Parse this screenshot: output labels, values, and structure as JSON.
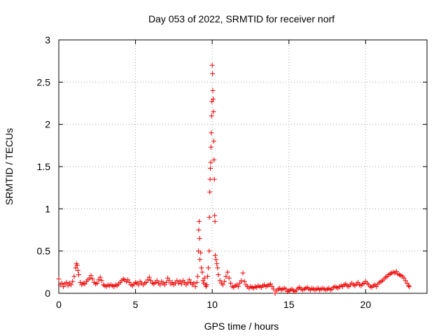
{
  "chart_data": {
    "type": "scatter",
    "title": "Day 053 of 2022, SRMTID for receiver norf",
    "xlabel": "GPS time / hours",
    "ylabel": "SRMTID / TECUs",
    "xlim": [
      0,
      24
    ],
    "ylim": [
      0,
      3
    ],
    "xticks": [
      0,
      5,
      10,
      15,
      20
    ],
    "yticks": [
      0,
      0.5,
      1,
      1.5,
      2,
      2.5,
      3
    ],
    "xtick_labels": [
      "0",
      "5",
      "10",
      "15",
      "20"
    ],
    "ytick_labels": [
      "0",
      "0.5",
      "1",
      "1.5",
      "2",
      "2.5",
      "3"
    ],
    "grid": true,
    "marker": "+",
    "series": [
      {
        "name": "SRMTID",
        "color": "#ee0000",
        "points": [
          [
            0.0,
            0.17
          ],
          [
            0.1,
            0.1
          ],
          [
            0.2,
            0.12
          ],
          [
            0.3,
            0.08
          ],
          [
            0.4,
            0.11
          ],
          [
            0.5,
            0.13
          ],
          [
            0.6,
            0.09
          ],
          [
            0.7,
            0.12
          ],
          [
            0.8,
            0.1
          ],
          [
            0.9,
            0.14
          ],
          [
            1.0,
            0.2
          ],
          [
            1.1,
            0.3
          ],
          [
            1.15,
            0.35
          ],
          [
            1.2,
            0.33
          ],
          [
            1.25,
            0.27
          ],
          [
            1.3,
            0.22
          ],
          [
            1.4,
            0.13
          ],
          [
            1.5,
            0.1
          ],
          [
            1.6,
            0.12
          ],
          [
            1.7,
            0.11
          ],
          [
            1.8,
            0.14
          ],
          [
            1.9,
            0.16
          ],
          [
            2.0,
            0.18
          ],
          [
            2.1,
            0.21
          ],
          [
            2.2,
            0.17
          ],
          [
            2.3,
            0.13
          ],
          [
            2.4,
            0.11
          ],
          [
            2.5,
            0.12
          ],
          [
            2.6,
            0.16
          ],
          [
            2.7,
            0.19
          ],
          [
            2.8,
            0.15
          ],
          [
            2.9,
            0.1
          ],
          [
            3.0,
            0.09
          ],
          [
            3.1,
            0.08
          ],
          [
            3.2,
            0.1
          ],
          [
            3.3,
            0.09
          ],
          [
            3.4,
            0.1
          ],
          [
            3.5,
            0.09
          ],
          [
            3.6,
            0.08
          ],
          [
            3.7,
            0.1
          ],
          [
            3.8,
            0.09
          ],
          [
            3.9,
            0.11
          ],
          [
            4.0,
            0.13
          ],
          [
            4.1,
            0.15
          ],
          [
            4.2,
            0.17
          ],
          [
            4.3,
            0.16
          ],
          [
            4.4,
            0.14
          ],
          [
            4.5,
            0.16
          ],
          [
            4.6,
            0.13
          ],
          [
            4.7,
            0.1
          ],
          [
            4.8,
            0.09
          ],
          [
            4.9,
            0.11
          ],
          [
            5.0,
            0.13
          ],
          [
            5.1,
            0.12
          ],
          [
            5.2,
            0.1
          ],
          [
            5.3,
            0.14
          ],
          [
            5.4,
            0.12
          ],
          [
            5.5,
            0.1
          ],
          [
            5.6,
            0.12
          ],
          [
            5.7,
            0.13
          ],
          [
            5.8,
            0.16
          ],
          [
            5.9,
            0.19
          ],
          [
            6.0,
            0.15
          ],
          [
            6.1,
            0.12
          ],
          [
            6.2,
            0.11
          ],
          [
            6.3,
            0.13
          ],
          [
            6.4,
            0.15
          ],
          [
            6.5,
            0.12
          ],
          [
            6.6,
            0.1
          ],
          [
            6.7,
            0.14
          ],
          [
            6.8,
            0.12
          ],
          [
            6.9,
            0.1
          ],
          [
            7.0,
            0.13
          ],
          [
            7.1,
            0.18
          ],
          [
            7.2,
            0.15
          ],
          [
            7.3,
            0.11
          ],
          [
            7.4,
            0.13
          ],
          [
            7.5,
            0.1
          ],
          [
            7.6,
            0.12
          ],
          [
            7.7,
            0.15
          ],
          [
            7.8,
            0.12
          ],
          [
            7.9,
            0.14
          ],
          [
            8.0,
            0.11
          ],
          [
            8.1,
            0.15
          ],
          [
            8.2,
            0.13
          ],
          [
            8.3,
            0.1
          ],
          [
            8.4,
            0.12
          ],
          [
            8.5,
            0.16
          ],
          [
            8.6,
            0.13
          ],
          [
            8.7,
            0.1
          ],
          [
            8.8,
            0.12
          ],
          [
            8.9,
            0.08
          ],
          [
            9.0,
            0.13
          ],
          [
            9.05,
            0.2
          ],
          [
            9.1,
            0.5
          ],
          [
            9.12,
            0.75
          ],
          [
            9.15,
            0.85
          ],
          [
            9.18,
            0.65
          ],
          [
            9.2,
            0.4
          ],
          [
            9.25,
            0.48
          ],
          [
            9.3,
            0.3
          ],
          [
            9.35,
            0.25
          ],
          [
            9.4,
            0.15
          ],
          [
            9.45,
            0.12
          ],
          [
            9.5,
            0.18
          ],
          [
            9.55,
            0.1
          ],
          [
            9.6,
            0.08
          ],
          [
            9.65,
            0.1
          ],
          [
            9.7,
            0.2
          ],
          [
            9.75,
            0.3
          ],
          [
            9.8,
            0.5
          ],
          [
            9.82,
            0.9
          ],
          [
            9.84,
            1.2
          ],
          [
            9.86,
            1.35
          ],
          [
            9.88,
            1.48
          ],
          [
            9.9,
            1.55
          ],
          [
            9.92,
            1.73
          ],
          [
            9.94,
            1.9
          ],
          [
            9.96,
            2.1
          ],
          [
            9.98,
            2.27
          ],
          [
            10.0,
            2.7
          ],
          [
            10.02,
            2.6
          ],
          [
            10.04,
            2.4
          ],
          [
            10.06,
            2.3
          ],
          [
            10.08,
            2.15
          ],
          [
            10.1,
            1.8
          ],
          [
            10.12,
            1.58
          ],
          [
            10.14,
            1.35
          ],
          [
            10.16,
            0.92
          ],
          [
            10.18,
            0.85
          ],
          [
            10.2,
            0.45
          ],
          [
            10.25,
            0.4
          ],
          [
            10.3,
            0.35
          ],
          [
            10.35,
            0.3
          ],
          [
            10.4,
            0.22
          ],
          [
            10.5,
            0.15
          ],
          [
            10.6,
            0.12
          ],
          [
            10.7,
            0.1
          ],
          [
            10.8,
            0.14
          ],
          [
            10.9,
            0.2
          ],
          [
            11.0,
            0.25
          ],
          [
            11.1,
            0.18
          ],
          [
            11.2,
            0.12
          ],
          [
            11.3,
            0.08
          ],
          [
            11.4,
            0.07
          ],
          [
            11.5,
            0.09
          ],
          [
            11.6,
            0.1
          ],
          [
            11.7,
            0.08
          ],
          [
            11.8,
            0.12
          ],
          [
            11.9,
            0.15
          ],
          [
            12.0,
            0.24
          ],
          [
            12.1,
            0.14
          ],
          [
            12.2,
            0.1
          ],
          [
            12.3,
            0.08
          ],
          [
            12.4,
            0.06
          ],
          [
            12.5,
            0.08
          ],
          [
            12.6,
            0.07
          ],
          [
            12.7,
            0.06
          ],
          [
            12.8,
            0.08
          ],
          [
            12.9,
            0.07
          ],
          [
            13.0,
            0.09
          ],
          [
            13.1,
            0.08
          ],
          [
            13.2,
            0.07
          ],
          [
            13.3,
            0.09
          ],
          [
            13.4,
            0.1
          ],
          [
            13.5,
            0.08
          ],
          [
            13.6,
            0.09
          ],
          [
            13.7,
            0.1
          ],
          [
            13.8,
            0.11
          ],
          [
            13.9,
            0.08
          ],
          [
            14.0,
            0.05
          ],
          [
            14.1,
            0.0
          ],
          [
            14.2,
            0.03
          ],
          [
            14.3,
            0.05
          ],
          [
            14.4,
            0.06
          ],
          [
            14.5,
            0.04
          ],
          [
            14.6,
            0.05
          ],
          [
            14.7,
            0.06
          ],
          [
            14.8,
            0.05
          ],
          [
            14.9,
            0.02
          ],
          [
            15.0,
            0.03
          ],
          [
            15.1,
            0.04
          ],
          [
            15.2,
            0.05
          ],
          [
            15.3,
            0.03
          ],
          [
            15.4,
            0.02
          ],
          [
            15.5,
            0.04
          ],
          [
            15.6,
            0.06
          ],
          [
            15.7,
            0.07
          ],
          [
            15.8,
            0.05
          ],
          [
            15.9,
            0.04
          ],
          [
            16.0,
            0.05
          ],
          [
            16.1,
            0.06
          ],
          [
            16.2,
            0.07
          ],
          [
            16.3,
            0.05
          ],
          [
            16.4,
            0.04
          ],
          [
            16.5,
            0.06
          ],
          [
            16.6,
            0.05
          ],
          [
            16.7,
            0.04
          ],
          [
            16.8,
            0.05
          ],
          [
            16.9,
            0.06
          ],
          [
            17.0,
            0.04
          ],
          [
            17.1,
            0.05
          ],
          [
            17.2,
            0.06
          ],
          [
            17.3,
            0.05
          ],
          [
            17.4,
            0.04
          ],
          [
            17.5,
            0.05
          ],
          [
            17.6,
            0.06
          ],
          [
            17.7,
            0.04
          ],
          [
            17.8,
            0.05
          ],
          [
            17.9,
            0.07
          ],
          [
            18.0,
            0.08
          ],
          [
            18.1,
            0.07
          ],
          [
            18.2,
            0.06
          ],
          [
            18.3,
            0.08
          ],
          [
            18.4,
            0.09
          ],
          [
            18.5,
            0.08
          ],
          [
            18.6,
            0.1
          ],
          [
            18.7,
            0.11
          ],
          [
            18.8,
            0.09
          ],
          [
            18.9,
            0.08
          ],
          [
            19.0,
            0.1
          ],
          [
            19.1,
            0.12
          ],
          [
            19.2,
            0.1
          ],
          [
            19.3,
            0.09
          ],
          [
            19.4,
            0.11
          ],
          [
            19.5,
            0.13
          ],
          [
            19.6,
            0.1
          ],
          [
            19.7,
            0.09
          ],
          [
            19.8,
            0.11
          ],
          [
            19.9,
            0.12
          ],
          [
            20.0,
            0.14
          ],
          [
            20.1,
            0.12
          ],
          [
            20.2,
            0.1
          ],
          [
            20.3,
            0.08
          ],
          [
            20.4,
            0.07
          ],
          [
            20.5,
            0.09
          ],
          [
            20.6,
            0.1
          ],
          [
            20.7,
            0.08
          ],
          [
            20.8,
            0.11
          ],
          [
            20.9,
            0.13
          ],
          [
            21.0,
            0.14
          ],
          [
            21.1,
            0.15
          ],
          [
            21.2,
            0.17
          ],
          [
            21.3,
            0.19
          ],
          [
            21.4,
            0.2
          ],
          [
            21.5,
            0.22
          ],
          [
            21.6,
            0.23
          ],
          [
            21.7,
            0.24
          ],
          [
            21.8,
            0.25
          ],
          [
            21.9,
            0.24
          ],
          [
            22.0,
            0.26
          ],
          [
            22.1,
            0.23
          ],
          [
            22.2,
            0.22
          ],
          [
            22.3,
            0.21
          ],
          [
            22.4,
            0.2
          ],
          [
            22.5,
            0.18
          ],
          [
            22.6,
            0.15
          ],
          [
            22.7,
            0.12
          ],
          [
            22.8,
            0.09
          ],
          [
            22.85,
            0.08
          ]
        ]
      }
    ]
  }
}
